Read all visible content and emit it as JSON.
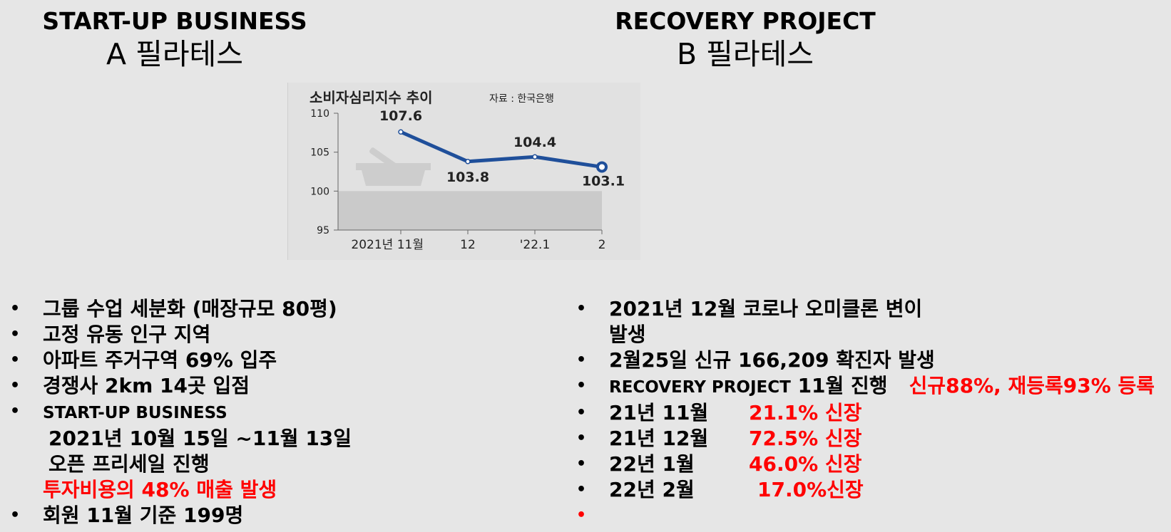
{
  "left_column": {
    "title": "START-UP BUSINESS",
    "subtitle": "A 필라테스",
    "bullets": [
      "그룹 수업 세분화 (매장규모 80평)",
      "고정 유동 인구 지역",
      "아파트 주거구역 69% 입주",
      "경쟁사 2km 14곳 입점",
      "START-UP BUSINESS",
      "회원 11월 기준 199명"
    ],
    "startup_details": {
      "period": "2021년 10월 15일 ~11월 13일",
      "presale": "오픈 프리세일 진행",
      "result": "투자비용의 48% 매출 발생"
    }
  },
  "right_column": {
    "title": "RECOVERY PROJECT",
    "subtitle": "B 필라테스",
    "bullet1_line1": "2021년 12월 코로나 오미클론 변이",
    "bullet1_line2": "발생",
    "bullet2": "2월25일 신규 166,209 확진자 발생",
    "bullet3_prefix": "RECOVERY PROJECT",
    "bullet3_suffix": "11월 진행",
    "bullet3_highlight": "신규88%, 재등록93% 등록",
    "growth_rows": [
      {
        "period": "21년 11월",
        "value": "21.1% 신장"
      },
      {
        "period": "21년 12월",
        "value": "72.5% 신장"
      },
      {
        "period": "22년 1월",
        "value": "46.0% 신장"
      },
      {
        "period": "22년 2월",
        "value": "17.0%신장"
      }
    ]
  },
  "bullet_symbol": "•",
  "colors": {
    "background": "#e6e6e6",
    "highlight": "#ff0000",
    "line": "#1f4f9a"
  },
  "chart_data": {
    "type": "line",
    "title": "소비자심리지수 추이",
    "source": "자료 : 한국은행",
    "categories": [
      "2021년 11월",
      "12",
      "'22.1",
      "2"
    ],
    "values": [
      107.6,
      103.8,
      104.4,
      103.1
    ],
    "data_labels": [
      "107.6",
      "103.8",
      "104.4",
      "103.1"
    ],
    "ylim": [
      95,
      110
    ],
    "yticks": [
      95,
      100,
      105,
      110
    ],
    "xlabel": "",
    "ylabel": "",
    "grid": false,
    "shaded_band_below": 100
  }
}
